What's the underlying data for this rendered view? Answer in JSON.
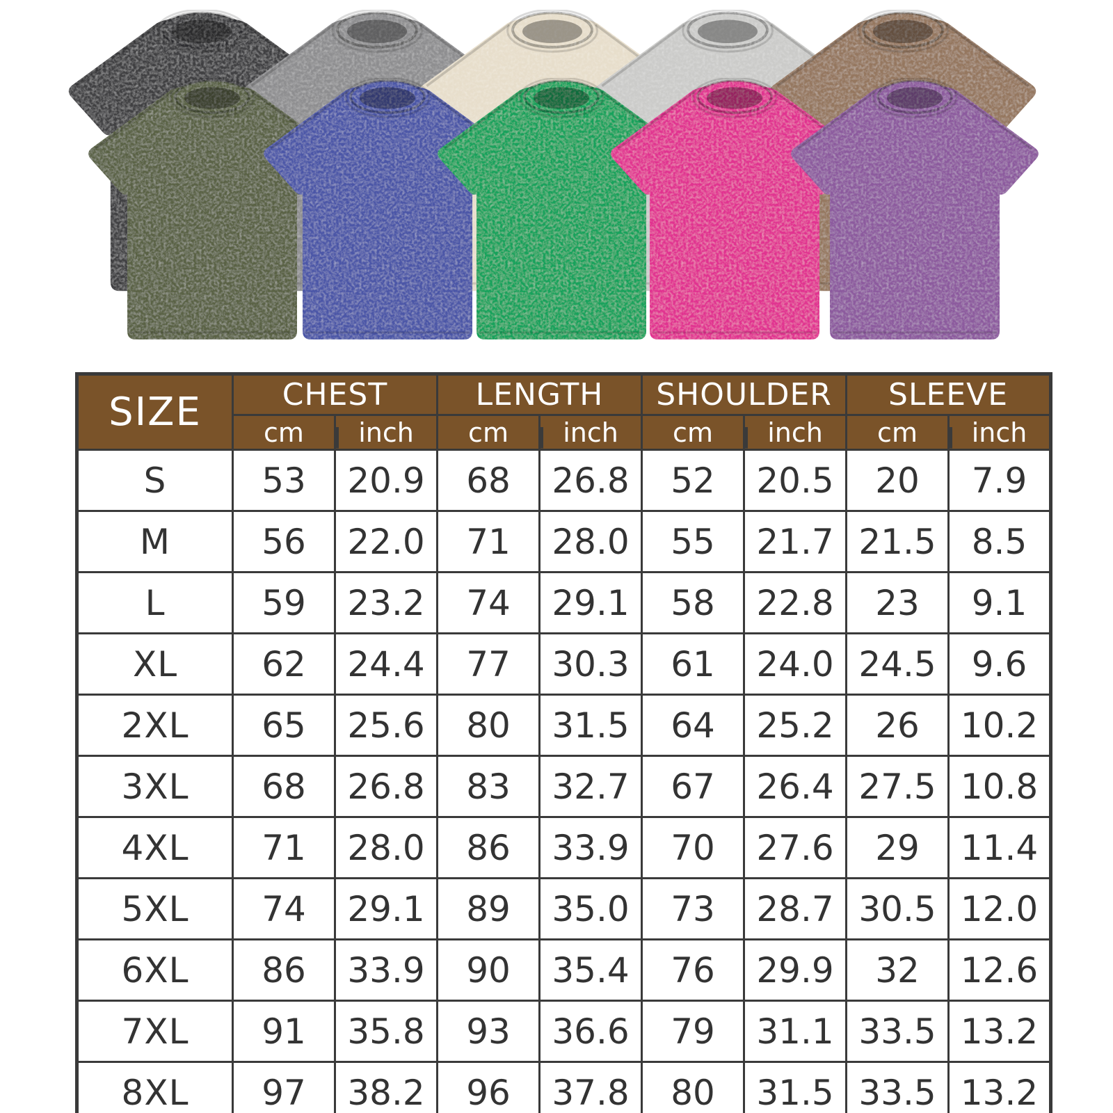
{
  "image_type": "t-shirt product size chart",
  "tshirt_gallery": {
    "back_row": [
      {
        "name": "washed-black-tshirt",
        "color": "#404042"
      },
      {
        "name": "washed-grey-tshirt",
        "color": "#8e8e90"
      },
      {
        "name": "washed-beige-tshirt",
        "color": "#e7decb"
      },
      {
        "name": "washed-light-grey-tshirt",
        "color": "#cbcbc9"
      },
      {
        "name": "washed-brown-tshirt",
        "color": "#95775e"
      }
    ],
    "front_row": [
      {
        "name": "washed-army-green-tshirt",
        "color": "#5a6244"
      },
      {
        "name": "washed-blue-tshirt",
        "color": "#4c57a7"
      },
      {
        "name": "washed-green-tshirt",
        "color": "#14a25c"
      },
      {
        "name": "washed-rose-tshirt",
        "color": "#e13190"
      },
      {
        "name": "washed-purple-tshirt",
        "color": "#8c5a9e"
      }
    ]
  },
  "size_chart": {
    "corner_label": "SIZE",
    "groups": [
      "CHEST",
      "LENGTH",
      "SHOULDER",
      "SLEEVE"
    ],
    "unit_cm": "cm",
    "unit_inch": "inch",
    "header_bg_color": "#7a5329",
    "border_color": "#3a3a3a",
    "text_color": "#333333"
  },
  "chart_data": {
    "type": "table",
    "title": "SIZE",
    "column_groups": [
      "CHEST",
      "LENGTH",
      "SHOULDER",
      "SLEEVE"
    ],
    "columns": [
      "SIZE",
      "CHEST cm",
      "CHEST inch",
      "LENGTH cm",
      "LENGTH inch",
      "SHOULDER cm",
      "SHOULDER inch",
      "SLEEVE cm",
      "SLEEVE inch"
    ],
    "rows": [
      [
        "S",
        "53",
        "20.9",
        "68",
        "26.8",
        "52",
        "20.5",
        "20",
        "7.9"
      ],
      [
        "M",
        "56",
        "22.0",
        "71",
        "28.0",
        "55",
        "21.7",
        "21.5",
        "8.5"
      ],
      [
        "L",
        "59",
        "23.2",
        "74",
        "29.1",
        "58",
        "22.8",
        "23",
        "9.1"
      ],
      [
        "XL",
        "62",
        "24.4",
        "77",
        "30.3",
        "61",
        "24.0",
        "24.5",
        "9.6"
      ],
      [
        "2XL",
        "65",
        "25.6",
        "80",
        "31.5",
        "64",
        "25.2",
        "26",
        "10.2"
      ],
      [
        "3XL",
        "68",
        "26.8",
        "83",
        "32.7",
        "67",
        "26.4",
        "27.5",
        "10.8"
      ],
      [
        "4XL",
        "71",
        "28.0",
        "86",
        "33.9",
        "70",
        "27.6",
        "29",
        "11.4"
      ],
      [
        "5XL",
        "74",
        "29.1",
        "89",
        "35.0",
        "73",
        "28.7",
        "30.5",
        "12.0"
      ],
      [
        "6XL",
        "86",
        "33.9",
        "90",
        "35.4",
        "76",
        "29.9",
        "32",
        "12.6"
      ],
      [
        "7XL",
        "91",
        "35.8",
        "93",
        "36.6",
        "79",
        "31.1",
        "33.5",
        "13.2"
      ],
      [
        "8XL",
        "97",
        "38.2",
        "96",
        "37.8",
        "80",
        "31.5",
        "33.5",
        "13.2"
      ]
    ]
  }
}
